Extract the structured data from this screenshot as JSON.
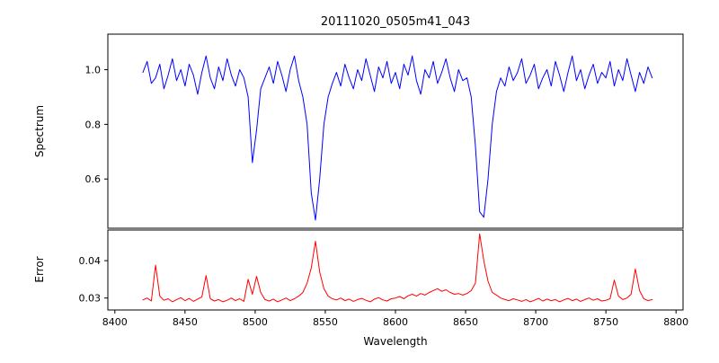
{
  "chart_data": {
    "type": "line",
    "title": "20111020_0505m41_043",
    "xlabel": "Wavelength",
    "xlim": [
      8395,
      8805
    ],
    "x_ticks": [
      8400,
      8450,
      8500,
      8550,
      8600,
      8650,
      8700,
      8750,
      8800
    ],
    "x_tick_labels": [
      "8400",
      "8450",
      "8500",
      "8550",
      "8600",
      "8650",
      "8700",
      "8750",
      "8800"
    ],
    "grid": false,
    "legend": "none",
    "x": [
      8420,
      8423,
      8426,
      8429,
      8432,
      8435,
      8438,
      8441,
      8444,
      8447,
      8450,
      8453,
      8456,
      8459,
      8462,
      8465,
      8468,
      8471,
      8474,
      8477,
      8480,
      8483,
      8486,
      8489,
      8492,
      8495,
      8498,
      8501,
      8504,
      8507,
      8510,
      8513,
      8516,
      8519,
      8522,
      8525,
      8528,
      8531,
      8534,
      8537,
      8540,
      8543,
      8546,
      8549,
      8552,
      8555,
      8558,
      8561,
      8564,
      8567,
      8570,
      8573,
      8576,
      8579,
      8582,
      8585,
      8588,
      8591,
      8594,
      8597,
      8600,
      8603,
      8606,
      8609,
      8612,
      8615,
      8618,
      8621,
      8624,
      8627,
      8630,
      8633,
      8636,
      8639,
      8642,
      8645,
      8648,
      8651,
      8654,
      8657,
      8660,
      8663,
      8666,
      8669,
      8672,
      8675,
      8678,
      8681,
      8684,
      8687,
      8690,
      8693,
      8696,
      8699,
      8702,
      8705,
      8708,
      8711,
      8714,
      8717,
      8720,
      8723,
      8726,
      8729,
      8732,
      8735,
      8738,
      8741,
      8744,
      8747,
      8750,
      8753,
      8756,
      8759,
      8762,
      8765,
      8768,
      8771,
      8774,
      8777,
      8780,
      8783
    ],
    "panels": [
      {
        "name": "spectrum",
        "ylabel": "Spectrum",
        "color": "#0000ff",
        "ylim": [
          0.42,
          1.13
        ],
        "y_tick_values": [
          0.6,
          0.8,
          1.0
        ],
        "y_tick_labels": [
          "0.6",
          "0.8",
          "1.0"
        ],
        "absorption_lines_x": [
          8498,
          8542,
          8662
        ],
        "y": [
          0.99,
          1.03,
          0.95,
          0.97,
          1.02,
          0.93,
          0.98,
          1.04,
          0.96,
          1.0,
          0.94,
          1.02,
          0.98,
          0.91,
          0.99,
          1.05,
          0.97,
          0.93,
          1.01,
          0.96,
          1.04,
          0.98,
          0.94,
          1.0,
          0.97,
          0.9,
          0.66,
          0.78,
          0.93,
          0.97,
          1.01,
          0.95,
          1.03,
          0.98,
          0.92,
          1.0,
          1.05,
          0.96,
          0.9,
          0.8,
          0.55,
          0.45,
          0.6,
          0.8,
          0.9,
          0.95,
          0.99,
          0.94,
          1.02,
          0.97,
          0.93,
          1.0,
          0.96,
          1.04,
          0.98,
          0.92,
          1.01,
          0.97,
          1.03,
          0.95,
          0.99,
          0.93,
          1.02,
          0.98,
          1.05,
          0.96,
          0.91,
          1.0,
          0.97,
          1.03,
          0.95,
          0.99,
          1.04,
          0.97,
          0.92,
          1.0,
          0.96,
          0.97,
          0.9,
          0.72,
          0.48,
          0.46,
          0.6,
          0.8,
          0.92,
          0.97,
          0.94,
          1.01,
          0.96,
          0.99,
          1.04,
          0.95,
          0.98,
          1.02,
          0.93,
          0.97,
          1.0,
          0.94,
          1.03,
          0.98,
          0.92,
          0.99,
          1.05,
          0.96,
          1.0,
          0.93,
          0.98,
          1.02,
          0.95,
          0.99,
          0.97,
          1.03,
          0.94,
          1.0,
          0.96,
          1.04,
          0.98,
          0.92,
          0.99,
          0.95,
          1.01,
          0.97
        ]
      },
      {
        "name": "error",
        "ylabel": "Error",
        "color": "#ff0000",
        "ylim": [
          0.0268,
          0.0482
        ],
        "y_tick_values": [
          0.03,
          0.04
        ],
        "y_tick_labels": [
          "0.03",
          "0.04"
        ],
        "y": [
          0.0295,
          0.03,
          0.0292,
          0.0388,
          0.0305,
          0.0294,
          0.0298,
          0.029,
          0.0296,
          0.0301,
          0.0293,
          0.0299,
          0.0291,
          0.0297,
          0.0303,
          0.036,
          0.0298,
          0.0292,
          0.0296,
          0.029,
          0.0294,
          0.03,
          0.0293,
          0.0298,
          0.0291,
          0.035,
          0.031,
          0.0358,
          0.0315,
          0.0296,
          0.0292,
          0.0297,
          0.029,
          0.0295,
          0.03,
          0.0293,
          0.0298,
          0.0305,
          0.0315,
          0.034,
          0.038,
          0.0452,
          0.037,
          0.0325,
          0.0305,
          0.0298,
          0.0295,
          0.03,
          0.0293,
          0.0297,
          0.0291,
          0.0296,
          0.0299,
          0.0294,
          0.029,
          0.0297,
          0.0301,
          0.0295,
          0.0292,
          0.0298,
          0.03,
          0.0304,
          0.0298,
          0.0306,
          0.031,
          0.0305,
          0.0312,
          0.0308,
          0.0315,
          0.032,
          0.0325,
          0.0318,
          0.0322,
          0.0315,
          0.031,
          0.0312,
          0.0308,
          0.0312,
          0.032,
          0.034,
          0.0472,
          0.04,
          0.0345,
          0.0315,
          0.0308,
          0.03,
          0.0296,
          0.0293,
          0.0298,
          0.0295,
          0.0291,
          0.0296,
          0.029,
          0.0294,
          0.0299,
          0.0292,
          0.0297,
          0.0293,
          0.0296,
          0.029,
          0.0295,
          0.0299,
          0.0293,
          0.0297,
          0.0291,
          0.0296,
          0.03,
          0.0294,
          0.0298,
          0.0292,
          0.0294,
          0.0298,
          0.0348,
          0.0305,
          0.0296,
          0.03,
          0.031,
          0.0378,
          0.032,
          0.0298,
          0.0293,
          0.0296
        ]
      }
    ]
  }
}
